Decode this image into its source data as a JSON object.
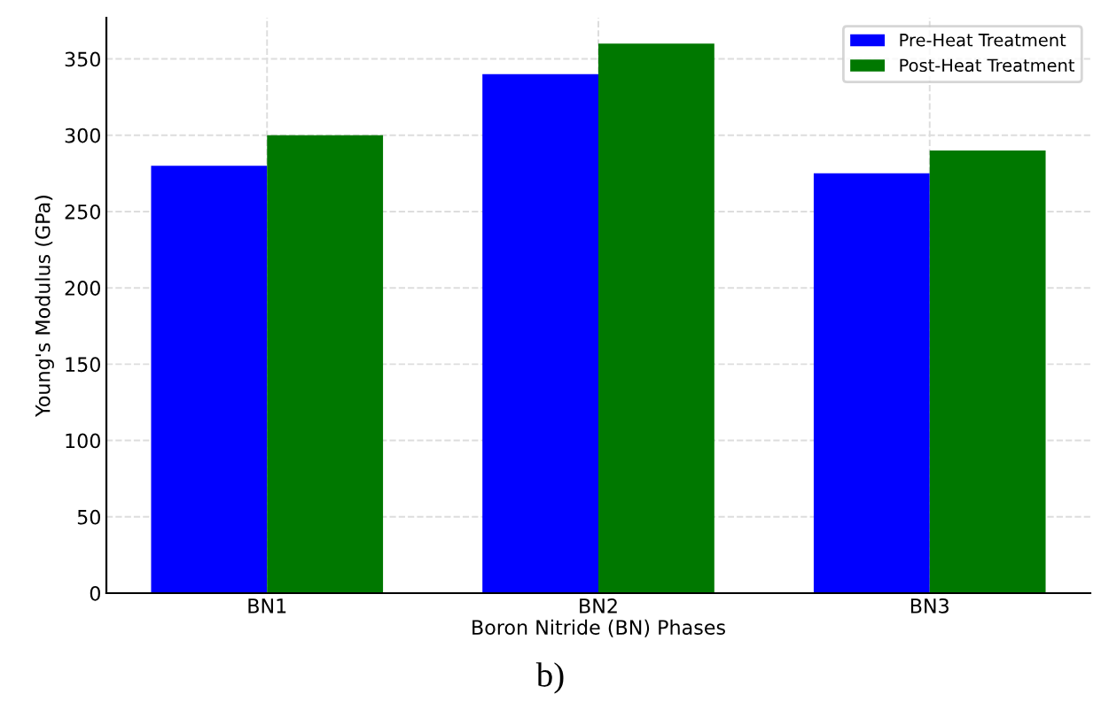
{
  "chart_data": {
    "type": "bar",
    "xlabel": "Boron Nitride (BN) Phases",
    "ylabel": "Young's Modulus (GPa)",
    "categories": [
      "BN1",
      "BN2",
      "BN3"
    ],
    "series": [
      {
        "name": "Pre-Heat Treatment",
        "color": "#0000ff",
        "values": [
          280,
          340,
          275
        ]
      },
      {
        "name": "Post-Heat Treatment",
        "color": "#007800",
        "values": [
          300,
          360,
          290
        ]
      }
    ],
    "ylim": [
      0,
      377
    ],
    "yticks": [
      0,
      50,
      100,
      150,
      200,
      250,
      300,
      350
    ],
    "grid": true,
    "legend": "top right",
    "annotations": [
      "b)"
    ]
  }
}
